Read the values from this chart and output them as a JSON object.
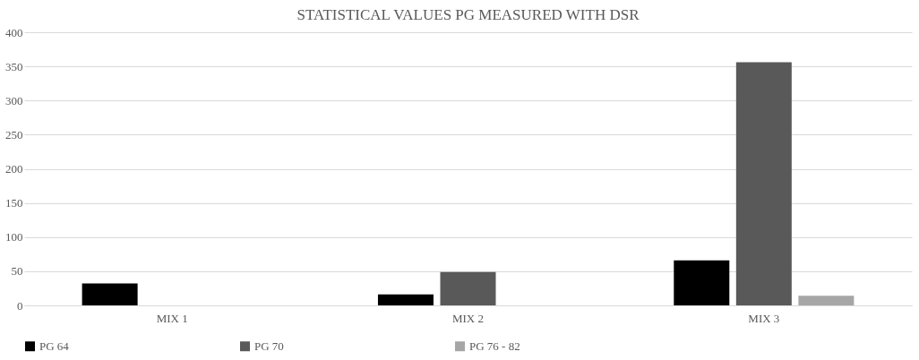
{
  "chart_data": {
    "type": "bar",
    "title": "STATISTICAL VALUES PG MEASURED WITH DSR",
    "categories": [
      "MIX 1",
      "MIX 2",
      "MIX 3"
    ],
    "series": [
      {
        "name": "PG 64",
        "color": "#000000",
        "values": [
          32,
          16,
          66
        ]
      },
      {
        "name": "PG 70",
        "color": "#595959",
        "values": [
          null,
          49,
          356
        ]
      },
      {
        "name": "PG  76 - 82",
        "color": "#a6a6a6",
        "values": [
          null,
          null,
          14
        ]
      }
    ],
    "ylim": [
      0,
      400
    ],
    "yticks": [
      0,
      50,
      100,
      150,
      200,
      250,
      300,
      350,
      400
    ],
    "grid": "y",
    "legend": "bottom"
  }
}
